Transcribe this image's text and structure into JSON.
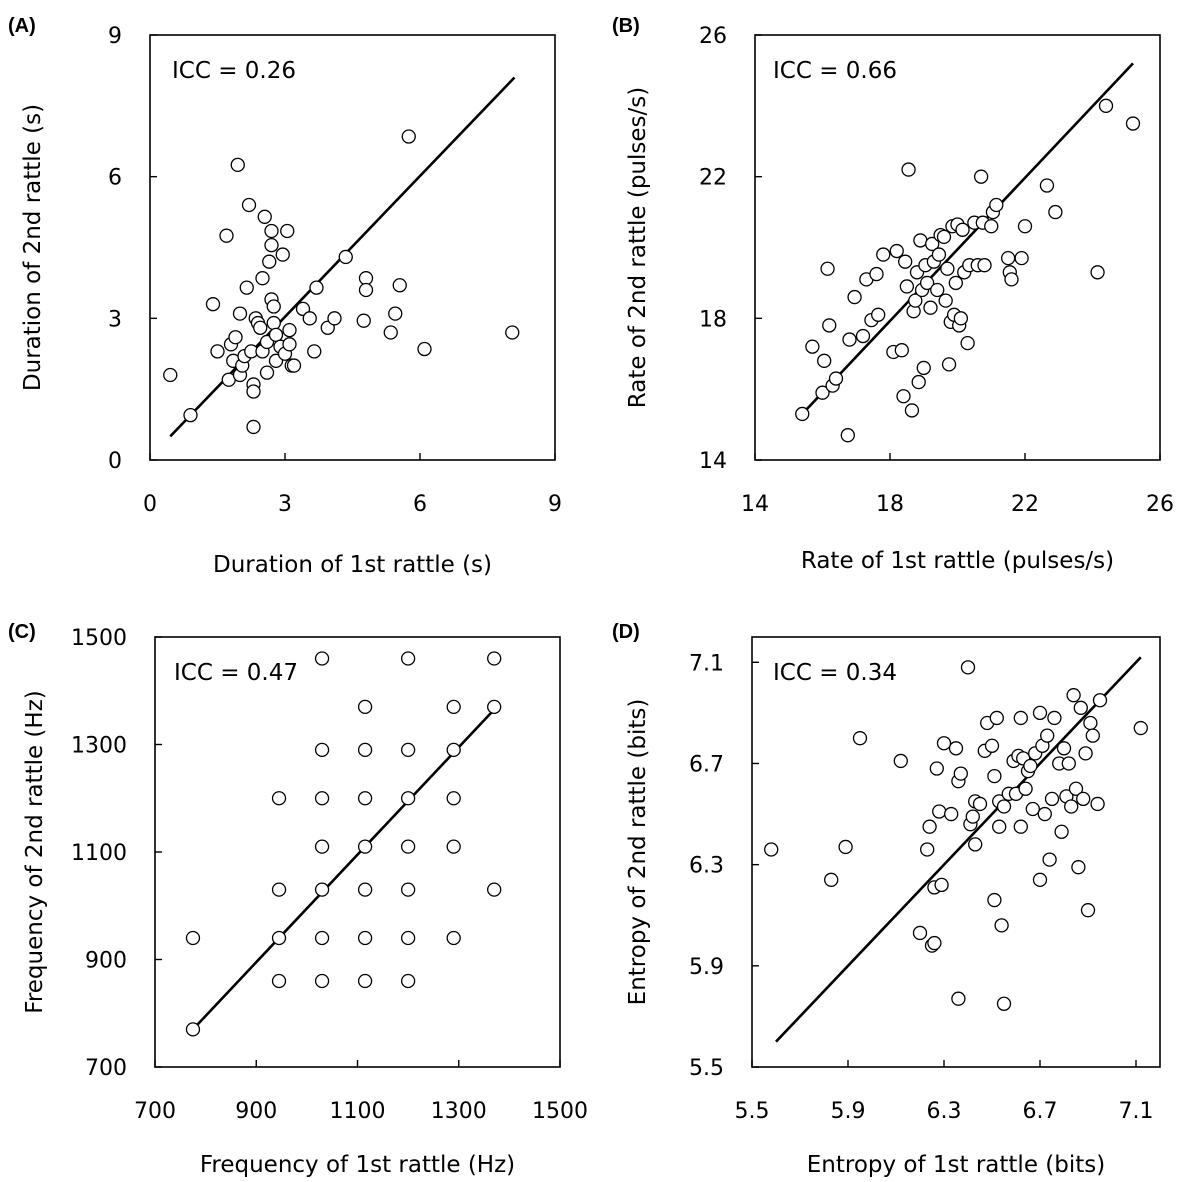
{
  "chart_data": [
    {
      "type": "scatter",
      "panel_label": "(A)",
      "annotation": "ICC = 0.26",
      "xlabel": "Duration of 1st rattle (s)",
      "ylabel": "Duration of 2nd rattle (s)",
      "xlim": [
        0,
        9
      ],
      "ylim": [
        0,
        9
      ],
      "xticks": [
        0,
        3,
        6,
        9
      ],
      "yticks": [
        0,
        3,
        6,
        9
      ],
      "xtick_labels": [
        "0",
        "3",
        "6",
        "9"
      ],
      "ytick_labels": [
        "0",
        "3",
        "6",
        "9"
      ],
      "line": [
        [
          0.45,
          0.5
        ],
        [
          8.1,
          8.1
        ]
      ],
      "points": [
        [
          0.45,
          1.8
        ],
        [
          0.9,
          0.95
        ],
        [
          1.4,
          3.3
        ],
        [
          1.5,
          2.3
        ],
        [
          1.7,
          4.75
        ],
        [
          1.75,
          1.7
        ],
        [
          1.8,
          2.45
        ],
        [
          1.85,
          2.1
        ],
        [
          1.9,
          2.6
        ],
        [
          1.95,
          6.25
        ],
        [
          2.0,
          3.1
        ],
        [
          2.0,
          1.8
        ],
        [
          2.05,
          2.0
        ],
        [
          2.1,
          2.2
        ],
        [
          2.15,
          3.65
        ],
        [
          2.2,
          5.4
        ],
        [
          2.25,
          2.3
        ],
        [
          2.3,
          1.6
        ],
        [
          2.3,
          1.45
        ],
        [
          2.3,
          0.7
        ],
        [
          2.35,
          3.0
        ],
        [
          2.4,
          2.9
        ],
        [
          2.45,
          2.8
        ],
        [
          2.5,
          3.85
        ],
        [
          2.5,
          2.3
        ],
        [
          2.55,
          5.15
        ],
        [
          2.6,
          2.5
        ],
        [
          2.6,
          1.85
        ],
        [
          2.65,
          4.2
        ],
        [
          2.7,
          4.55
        ],
        [
          2.7,
          4.85
        ],
        [
          2.7,
          3.4
        ],
        [
          2.75,
          3.25
        ],
        [
          2.75,
          2.9
        ],
        [
          2.8,
          2.65
        ],
        [
          2.8,
          2.1
        ],
        [
          2.9,
          2.4
        ],
        [
          2.95,
          4.35
        ],
        [
          3.0,
          2.25
        ],
        [
          3.05,
          4.85
        ],
        [
          3.1,
          2.75
        ],
        [
          3.1,
          2.45
        ],
        [
          3.15,
          2.0
        ],
        [
          3.2,
          2.0
        ],
        [
          3.4,
          3.2
        ],
        [
          3.55,
          3.0
        ],
        [
          3.65,
          2.3
        ],
        [
          3.7,
          3.65
        ],
        [
          3.95,
          2.8
        ],
        [
          4.1,
          3.0
        ],
        [
          4.35,
          4.3
        ],
        [
          4.75,
          2.95
        ],
        [
          4.8,
          3.85
        ],
        [
          4.8,
          3.6
        ],
        [
          5.35,
          2.7
        ],
        [
          5.45,
          3.1
        ],
        [
          5.55,
          3.7
        ],
        [
          5.75,
          6.85
        ],
        [
          6.1,
          2.35
        ],
        [
          8.05,
          2.7
        ]
      ]
    },
    {
      "type": "scatter",
      "panel_label": "(B)",
      "annotation": "ICC = 0.66",
      "xlabel": "Rate of 1st rattle (pulses/s)",
      "ylabel": "Rate of 2nd rattle (pulses/s)",
      "xlim": [
        14,
        26
      ],
      "ylim": [
        14,
        26
      ],
      "xticks": [
        14,
        18,
        22,
        26
      ],
      "yticks": [
        14,
        18,
        22,
        26
      ],
      "xtick_labels": [
        "14",
        "18",
        "22",
        "26"
      ],
      "ytick_labels": [
        "14",
        "18",
        "22",
        "26"
      ],
      "line": [
        [
          15.4,
          15.3
        ],
        [
          25.2,
          25.2
        ]
      ],
      "points": [
        [
          15.4,
          15.3
        ],
        [
          15.7,
          17.2
        ],
        [
          16.0,
          15.9
        ],
        [
          16.05,
          16.8
        ],
        [
          16.15,
          19.4
        ],
        [
          16.2,
          17.8
        ],
        [
          16.3,
          16.1
        ],
        [
          16.4,
          16.3
        ],
        [
          16.75,
          14.7
        ],
        [
          16.8,
          17.4
        ],
        [
          16.95,
          18.6
        ],
        [
          17.2,
          17.5
        ],
        [
          17.3,
          19.1
        ],
        [
          17.45,
          17.95
        ],
        [
          17.6,
          19.25
        ],
        [
          17.65,
          18.1
        ],
        [
          17.8,
          19.8
        ],
        [
          18.1,
          17.05
        ],
        [
          18.2,
          19.9
        ],
        [
          18.35,
          17.1
        ],
        [
          18.4,
          15.8
        ],
        [
          18.45,
          19.6
        ],
        [
          18.5,
          18.9
        ],
        [
          18.55,
          22.2
        ],
        [
          18.65,
          15.4
        ],
        [
          18.7,
          18.2
        ],
        [
          18.75,
          18.5
        ],
        [
          18.8,
          19.3
        ],
        [
          18.85,
          16.2
        ],
        [
          18.9,
          20.2
        ],
        [
          18.95,
          18.8
        ],
        [
          19.0,
          16.6
        ],
        [
          19.05,
          19.5
        ],
        [
          19.1,
          19.0
        ],
        [
          19.2,
          18.3
        ],
        [
          19.25,
          20.1
        ],
        [
          19.3,
          19.6
        ],
        [
          19.4,
          18.8
        ],
        [
          19.45,
          19.8
        ],
        [
          19.5,
          20.35
        ],
        [
          19.6,
          20.3
        ],
        [
          19.65,
          18.5
        ],
        [
          19.7,
          19.4
        ],
        [
          19.75,
          16.7
        ],
        [
          19.8,
          17.9
        ],
        [
          19.85,
          20.6
        ],
        [
          19.9,
          18.1
        ],
        [
          19.95,
          19.0
        ],
        [
          20.0,
          20.65
        ],
        [
          20.05,
          17.8
        ],
        [
          20.1,
          18.0
        ],
        [
          20.15,
          20.5
        ],
        [
          20.2,
          19.3
        ],
        [
          20.3,
          17.3
        ],
        [
          20.35,
          19.5
        ],
        [
          20.5,
          20.7
        ],
        [
          20.6,
          19.5
        ],
        [
          20.7,
          22.0
        ],
        [
          20.75,
          20.7
        ],
        [
          20.8,
          19.5
        ],
        [
          21.0,
          20.6
        ],
        [
          21.05,
          21.0
        ],
        [
          21.15,
          21.2
        ],
        [
          21.5,
          19.7
        ],
        [
          21.55,
          19.3
        ],
        [
          21.6,
          19.1
        ],
        [
          21.9,
          19.7
        ],
        [
          22.0,
          20.6
        ],
        [
          22.65,
          21.75
        ],
        [
          22.9,
          21.0
        ],
        [
          24.15,
          19.3
        ],
        [
          24.4,
          24.0
        ],
        [
          25.2,
          23.5
        ]
      ]
    },
    {
      "type": "scatter",
      "panel_label": "(C)",
      "annotation": "ICC = 0.47",
      "xlabel": "Frequency of 1st rattle (Hz)",
      "ylabel": "Frequency of 2nd rattle (Hz)",
      "xlim": [
        700,
        1500
      ],
      "ylim": [
        700,
        1500
      ],
      "xticks": [
        700,
        900,
        1100,
        1300,
        1500
      ],
      "yticks": [
        700,
        900,
        1100,
        1300,
        1500
      ],
      "xtick_labels": [
        "700",
        "900",
        "1100",
        "1300",
        "1500"
      ],
      "ytick_labels": [
        "700",
        "900",
        "1100",
        "1300",
        "1500"
      ],
      "line": [
        [
          775,
          770
        ],
        [
          1375,
          1370
        ]
      ],
      "points": [
        [
          775,
          770
        ],
        [
          775,
          940
        ],
        [
          945,
          860
        ],
        [
          945,
          940
        ],
        [
          945,
          1030
        ],
        [
          945,
          1200
        ],
        [
          1030,
          860
        ],
        [
          1030,
          940
        ],
        [
          1030,
          1030
        ],
        [
          1030,
          1110
        ],
        [
          1030,
          1200
        ],
        [
          1030,
          1290
        ],
        [
          1030,
          1460
        ],
        [
          1115,
          860
        ],
        [
          1115,
          940
        ],
        [
          1115,
          1030
        ],
        [
          1115,
          1110
        ],
        [
          1115,
          1200
        ],
        [
          1115,
          1290
        ],
        [
          1115,
          1370
        ],
        [
          1200,
          860
        ],
        [
          1200,
          940
        ],
        [
          1200,
          1030
        ],
        [
          1200,
          1110
        ],
        [
          1200,
          1200
        ],
        [
          1200,
          1290
        ],
        [
          1200,
          1460
        ],
        [
          1290,
          940
        ],
        [
          1290,
          1110
        ],
        [
          1290,
          1200
        ],
        [
          1290,
          1290
        ],
        [
          1290,
          1370
        ],
        [
          1370,
          1030
        ],
        [
          1370,
          1370
        ],
        [
          1370,
          1460
        ]
      ]
    },
    {
      "type": "scatter",
      "panel_label": "(D)",
      "annotation": "ICC = 0.34",
      "xlabel": "Entropy of 1st rattle (bits)",
      "ylabel": "Entropy of 2nd rattle (bits)",
      "xlim": [
        5.5,
        7.2
      ],
      "ylim": [
        5.5,
        7.2
      ],
      "xticks": [
        5.5,
        5.9,
        6.3,
        6.7,
        7.1
      ],
      "yticks": [
        5.5,
        5.9,
        6.3,
        6.7,
        7.1
      ],
      "xtick_labels": [
        "5.5",
        "5.9",
        "6.3",
        "6.7",
        "7.1"
      ],
      "ytick_labels": [
        "5.5",
        "5.9",
        "6.3",
        "6.7",
        "7.1"
      ],
      "line": [
        [
          5.6,
          5.6
        ],
        [
          7.12,
          7.12
        ]
      ],
      "points": [
        [
          5.58,
          6.36
        ],
        [
          5.83,
          6.24
        ],
        [
          5.89,
          6.37
        ],
        [
          5.95,
          6.8
        ],
        [
          6.12,
          6.71
        ],
        [
          6.2,
          6.03
        ],
        [
          6.23,
          6.36
        ],
        [
          6.24,
          6.45
        ],
        [
          6.25,
          5.98
        ],
        [
          6.26,
          6.21
        ],
        [
          6.26,
          5.99
        ],
        [
          6.27,
          6.68
        ],
        [
          6.28,
          6.51
        ],
        [
          6.29,
          6.22
        ],
        [
          6.3,
          6.78
        ],
        [
          6.33,
          6.5
        ],
        [
          6.35,
          6.76
        ],
        [
          6.36,
          6.63
        ],
        [
          6.36,
          5.77
        ],
        [
          6.37,
          6.66
        ],
        [
          6.4,
          7.08
        ],
        [
          6.41,
          6.46
        ],
        [
          6.42,
          6.49
        ],
        [
          6.43,
          6.55
        ],
        [
          6.43,
          6.38
        ],
        [
          6.45,
          6.54
        ],
        [
          6.47,
          6.75
        ],
        [
          6.48,
          6.86
        ],
        [
          6.5,
          6.77
        ],
        [
          6.51,
          6.16
        ],
        [
          6.51,
          6.65
        ],
        [
          6.52,
          6.88
        ],
        [
          6.53,
          6.55
        ],
        [
          6.53,
          6.45
        ],
        [
          6.54,
          6.06
        ],
        [
          6.55,
          6.53
        ],
        [
          6.55,
          5.75
        ],
        [
          6.57,
          6.58
        ],
        [
          6.59,
          6.71
        ],
        [
          6.6,
          6.58
        ],
        [
          6.61,
          6.73
        ],
        [
          6.62,
          6.45
        ],
        [
          6.62,
          6.88
        ],
        [
          6.63,
          6.72
        ],
        [
          6.64,
          6.6
        ],
        [
          6.65,
          6.67
        ],
        [
          6.66,
          6.69
        ],
        [
          6.67,
          6.52
        ],
        [
          6.68,
          6.74
        ],
        [
          6.7,
          6.24
        ],
        [
          6.7,
          6.9
        ],
        [
          6.71,
          6.77
        ],
        [
          6.72,
          6.5
        ],
        [
          6.73,
          6.81
        ],
        [
          6.74,
          6.32
        ],
        [
          6.75,
          6.56
        ],
        [
          6.76,
          6.88
        ],
        [
          6.78,
          6.7
        ],
        [
          6.79,
          6.43
        ],
        [
          6.8,
          6.76
        ],
        [
          6.81,
          6.57
        ],
        [
          6.82,
          6.7
        ],
        [
          6.83,
          6.53
        ],
        [
          6.84,
          6.97
        ],
        [
          6.85,
          6.6
        ],
        [
          6.86,
          6.29
        ],
        [
          6.87,
          6.92
        ],
        [
          6.88,
          6.56
        ],
        [
          6.89,
          6.74
        ],
        [
          6.9,
          6.12
        ],
        [
          6.91,
          6.86
        ],
        [
          6.92,
          6.81
        ],
        [
          6.94,
          6.54
        ],
        [
          6.95,
          6.95
        ],
        [
          7.12,
          6.84
        ]
      ]
    }
  ]
}
